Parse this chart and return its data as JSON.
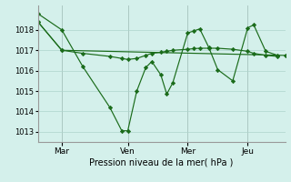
{
  "background_color": "#d4f0eb",
  "line_color": "#1a6b1a",
  "grid_color": "#aed4cc",
  "xlabel": "Pression niveau de la mer( hPa )",
  "ylim": [
    1012.5,
    1019.2
  ],
  "yticks": [
    1013,
    1014,
    1015,
    1016,
    1017,
    1018
  ],
  "xtick_labels": [
    "Mar",
    "Ven",
    "Mer",
    "Jeu"
  ],
  "xtick_positions": [
    16,
    60,
    100,
    140
  ],
  "xlim": [
    0,
    165
  ],
  "series1_x": [
    0,
    16,
    30,
    48,
    56,
    60,
    66,
    72,
    76,
    82,
    86,
    90,
    100,
    104,
    108,
    114,
    120,
    130,
    140,
    144,
    152,
    160
  ],
  "series1_y": [
    1018.8,
    1018.0,
    1016.2,
    1014.2,
    1013.05,
    1013.05,
    1015.0,
    1016.15,
    1016.45,
    1015.8,
    1014.85,
    1015.4,
    1017.85,
    1017.95,
    1018.05,
    1017.15,
    1016.05,
    1015.5,
    1018.1,
    1018.25,
    1016.95,
    1016.75
  ],
  "series2_x": [
    0,
    16,
    165
  ],
  "series2_y": [
    1018.4,
    1017.0,
    1016.75
  ],
  "series3_x": [
    0,
    16,
    30,
    48,
    56,
    60,
    66,
    72,
    76,
    82,
    86,
    90,
    100,
    104,
    108,
    114,
    120,
    130,
    140,
    144,
    152,
    160
  ],
  "series3_y": [
    1018.4,
    1017.0,
    1016.85,
    1016.7,
    1016.6,
    1016.55,
    1016.6,
    1016.75,
    1016.85,
    1016.9,
    1016.95,
    1017.0,
    1017.05,
    1017.08,
    1017.1,
    1017.1,
    1017.1,
    1017.05,
    1016.95,
    1016.85,
    1016.75,
    1016.7
  ]
}
